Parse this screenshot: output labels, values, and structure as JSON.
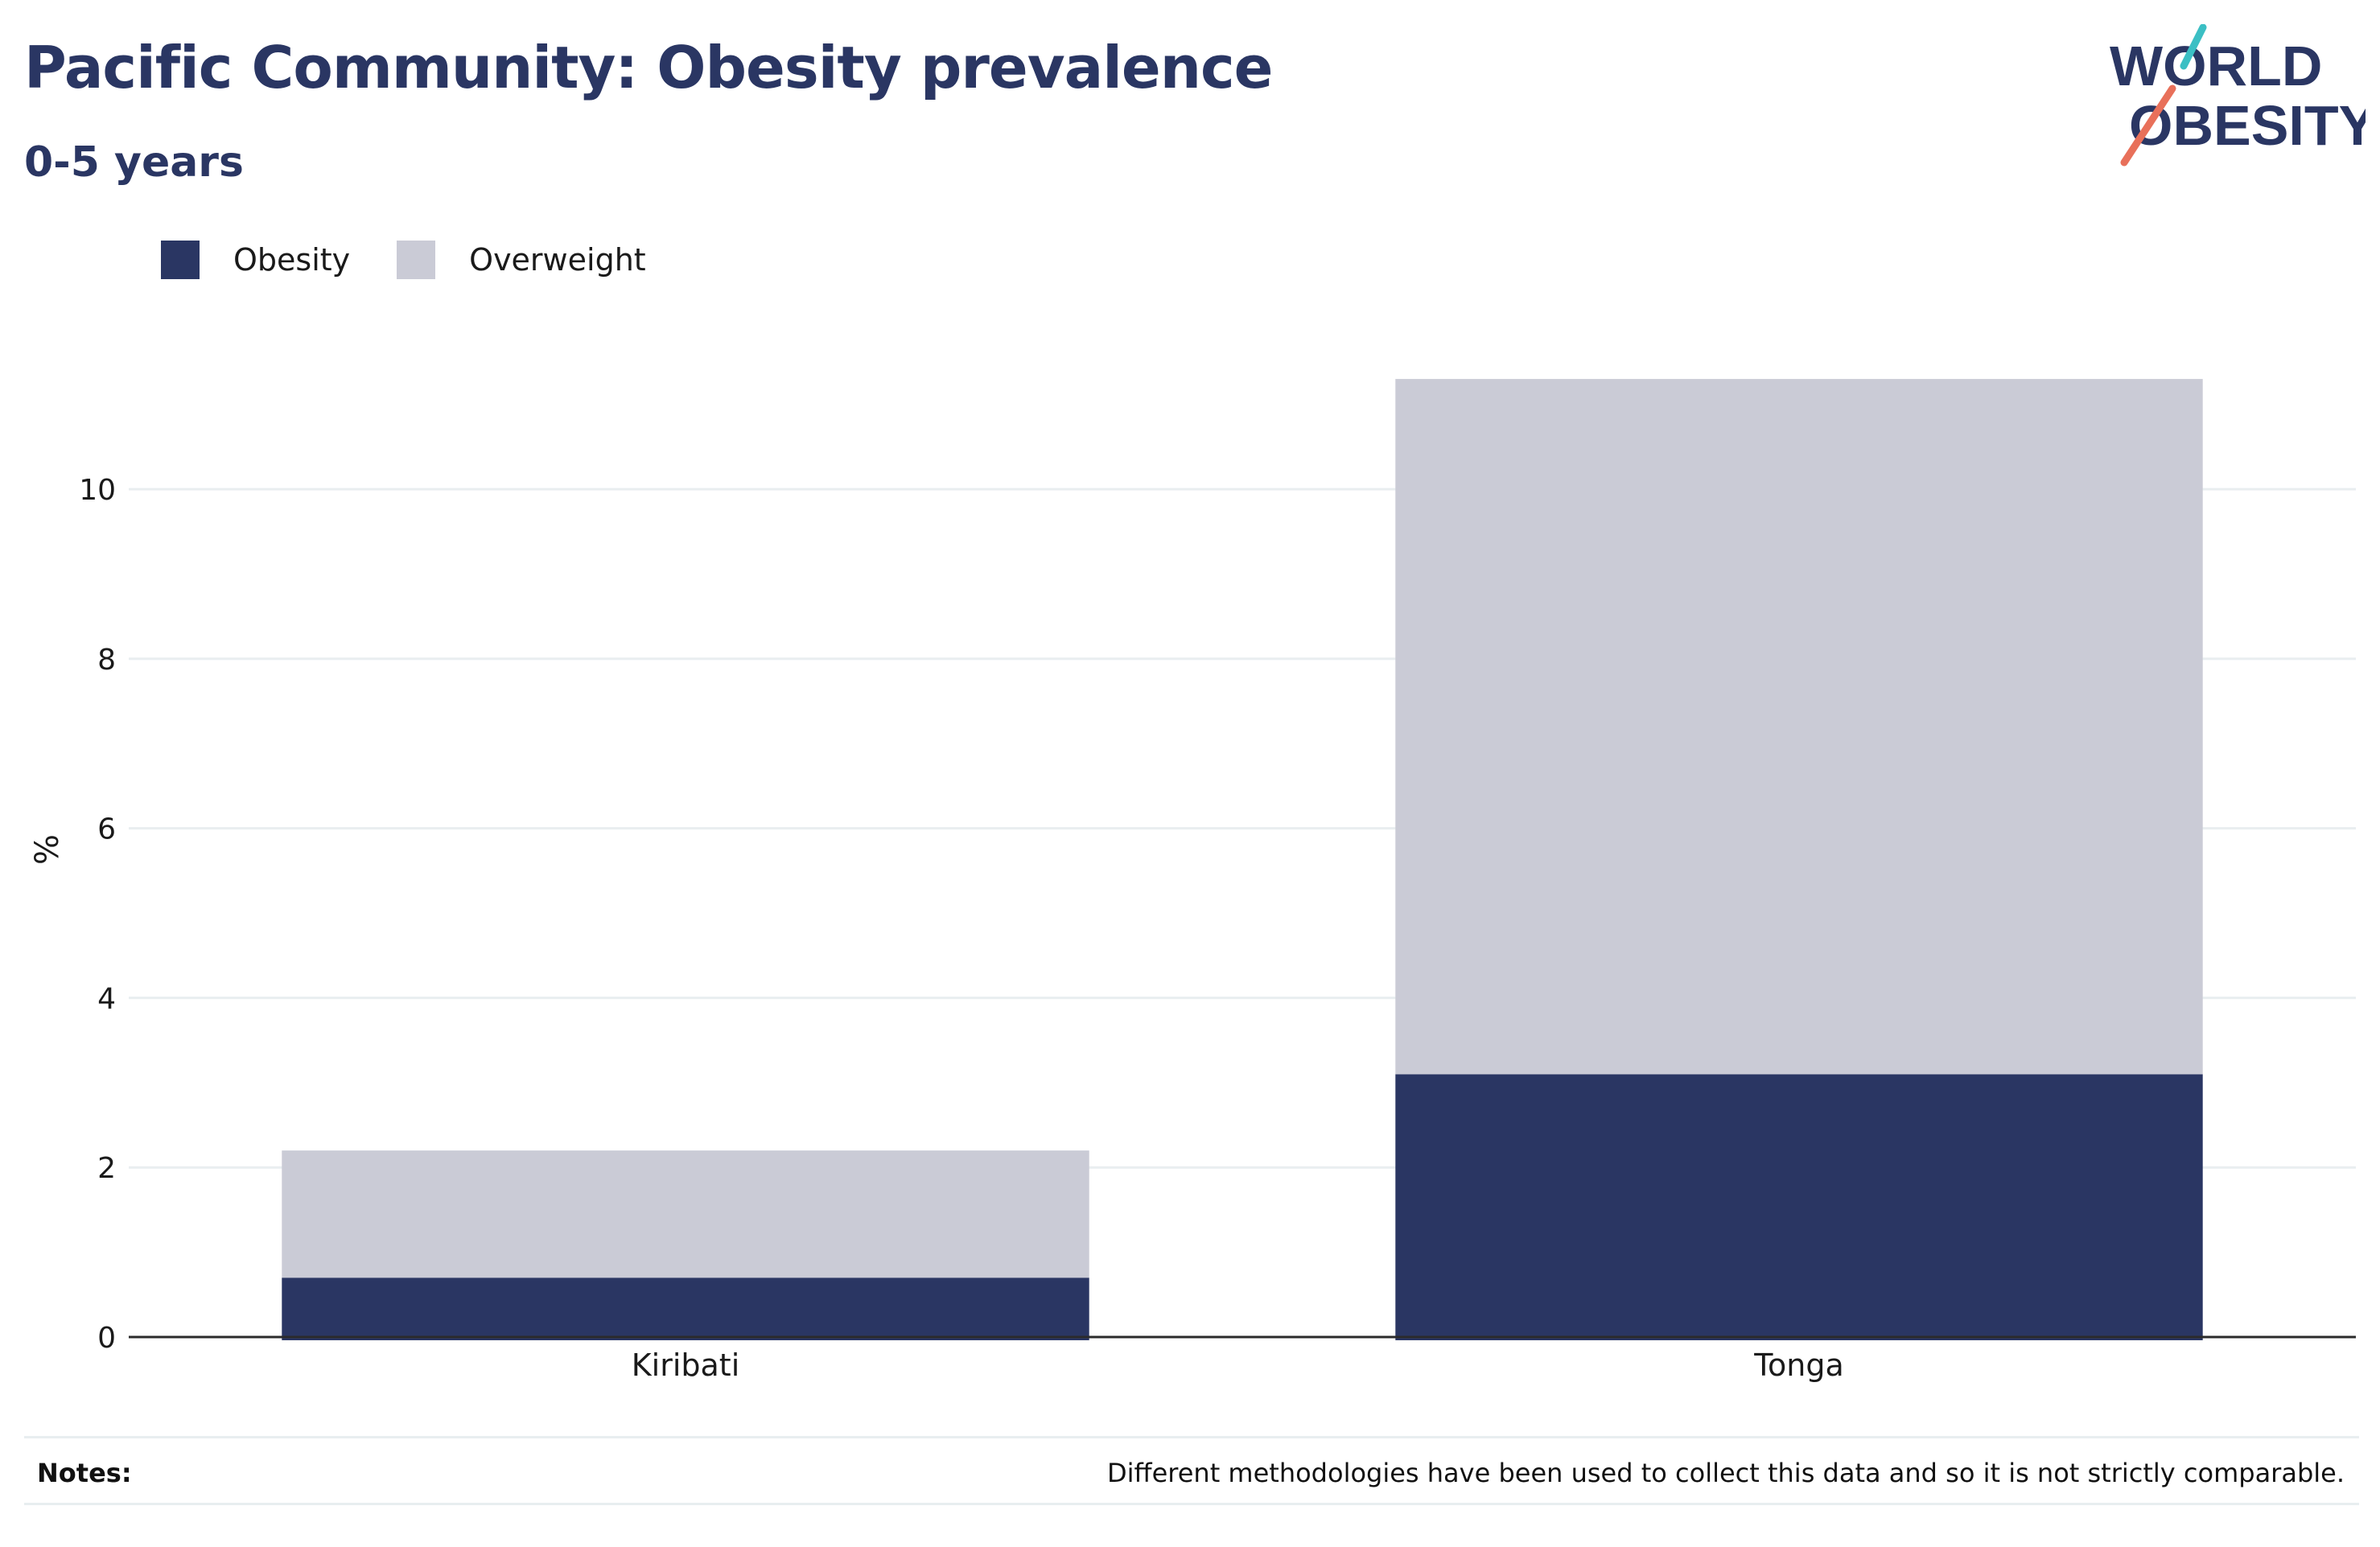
{
  "header": {
    "title": "Pacific Community: Obesity prevalence",
    "subtitle": "0-5 years"
  },
  "logo": {
    "line1": "WORLD",
    "line2": "OBESITY",
    "text_color": "#2a3663",
    "accent_teal": "#3bbfc4",
    "accent_red": "#e8705a"
  },
  "legend": {
    "items": [
      {
        "label": "Obesity",
        "color": "#2a3663"
      },
      {
        "label": "Overweight",
        "color": "#cacbd6"
      }
    ]
  },
  "footer": {
    "notes_label": "Notes:",
    "notes_text": "Different methodologies have been used to collect this data and so it is not strictly comparable."
  },
  "chart_data": {
    "type": "bar",
    "stacked": true,
    "title": "Pacific Community: Obesity prevalence",
    "subtitle": "0-5 years",
    "categories": [
      "Kiribati",
      "Tonga"
    ],
    "series": [
      {
        "name": "Obesity",
        "values": [
          0.7,
          3.1
        ],
        "color": "#2a3663"
      },
      {
        "name": "Overweight",
        "values": [
          1.5,
          8.2
        ],
        "color": "#cacbd6"
      }
    ],
    "xlabel": "",
    "ylabel": "%",
    "ylim": [
      0,
      11.5
    ],
    "yticks": [
      0,
      2,
      4,
      6,
      8,
      10
    ],
    "grid": true,
    "legend_position": "top-left"
  }
}
